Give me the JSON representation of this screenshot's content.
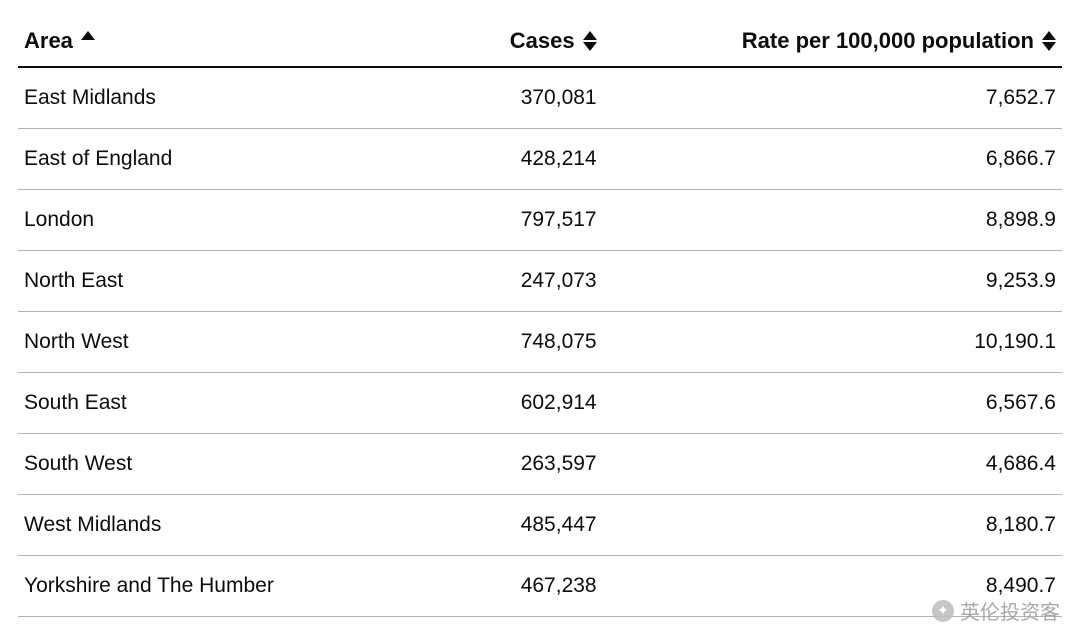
{
  "table": {
    "columns": [
      {
        "key": "area",
        "label": "Area",
        "align": "left",
        "sort": "asc"
      },
      {
        "key": "cases",
        "label": "Cases",
        "align": "right",
        "sort": "both"
      },
      {
        "key": "rate",
        "label": "Rate per 100,000 population",
        "align": "right",
        "sort": "both"
      }
    ],
    "rows": [
      {
        "area": "East Midlands",
        "cases": "370,081",
        "rate": "7,652.7"
      },
      {
        "area": "East of England",
        "cases": "428,214",
        "rate": "6,866.7"
      },
      {
        "area": "London",
        "cases": "797,517",
        "rate": "8,898.9"
      },
      {
        "area": "North East",
        "cases": "247,073",
        "rate": "9,253.9"
      },
      {
        "area": "North West",
        "cases": "748,075",
        "rate": "10,190.1"
      },
      {
        "area": "South East",
        "cases": "602,914",
        "rate": "6,567.6"
      },
      {
        "area": "South West",
        "cases": "263,597",
        "rate": "4,686.4"
      },
      {
        "area": "West Midlands",
        "cases": "485,447",
        "rate": "8,180.7"
      },
      {
        "area": "Yorkshire and The Humber",
        "cases": "467,238",
        "rate": "8,490.7"
      }
    ],
    "header_border_color": "#0b0c0c",
    "row_border_color": "#b1b4b6",
    "text_color": "#0b0c0c",
    "background_color": "#ffffff",
    "header_fontsize": 22,
    "cell_fontsize": 21
  },
  "watermark": {
    "text": "英伦投资客"
  }
}
